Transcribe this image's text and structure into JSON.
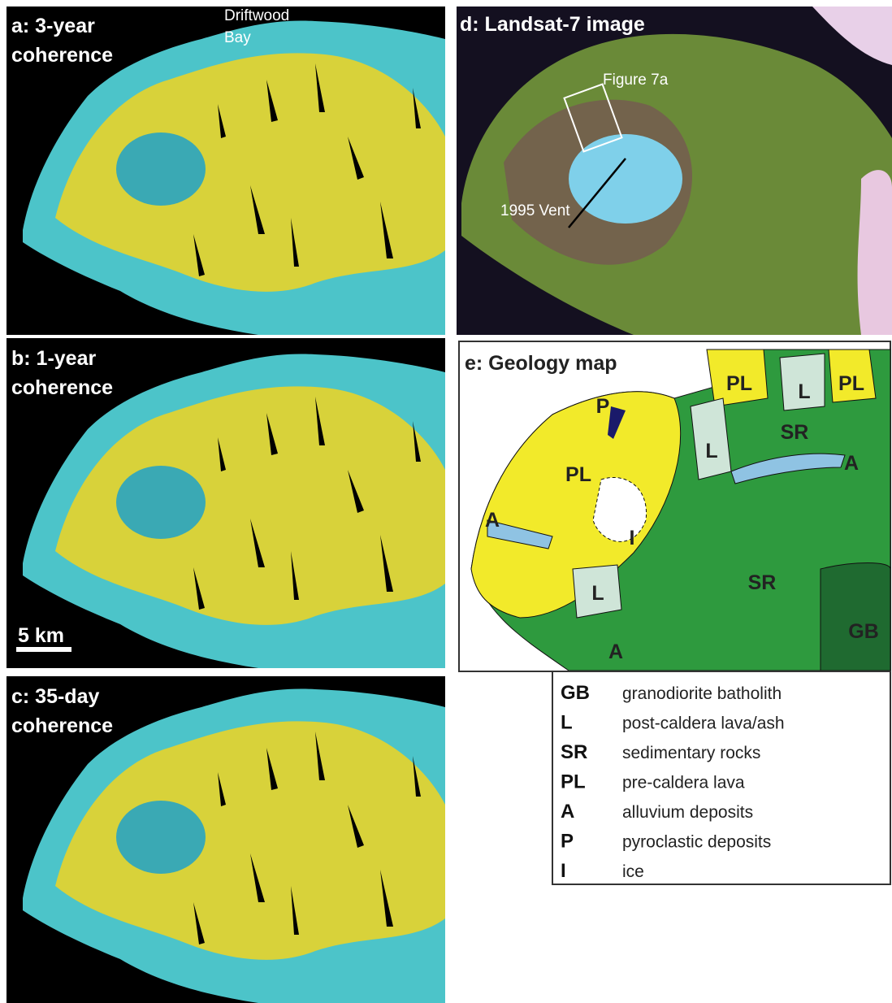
{
  "panels": {
    "a": {
      "title": [
        "a: 3-year",
        "coherence"
      ],
      "place_label": [
        "Driftwood",
        "Bay"
      ]
    },
    "b": {
      "title": [
        "b: 1-year",
        "coherence"
      ],
      "scale_bar": "5 km"
    },
    "c": {
      "title": [
        "c: 35-day",
        "coherence"
      ]
    },
    "d": {
      "title": "d: Landsat-7 image",
      "annotations": [
        "Figure 7a",
        "1995 Vent"
      ]
    },
    "e": {
      "title": "e: Geology map",
      "map_labels": [
        "PL",
        "L",
        "PL",
        "P",
        "SR",
        "L",
        "A",
        "PL",
        "I",
        "A",
        "L",
        "SR",
        "GB",
        "A"
      ]
    }
  },
  "legend": {
    "rows": [
      [
        "GB",
        "granodiorite batholith"
      ],
      [
        "L",
        "post-caldera lava/ash"
      ],
      [
        "SR",
        "sedimentary rocks"
      ],
      [
        "PL",
        "pre-caldera lava"
      ],
      [
        "A",
        "alluvium deposits"
      ],
      [
        "P",
        "pyroclastic deposits"
      ],
      [
        "I",
        "ice"
      ]
    ]
  }
}
